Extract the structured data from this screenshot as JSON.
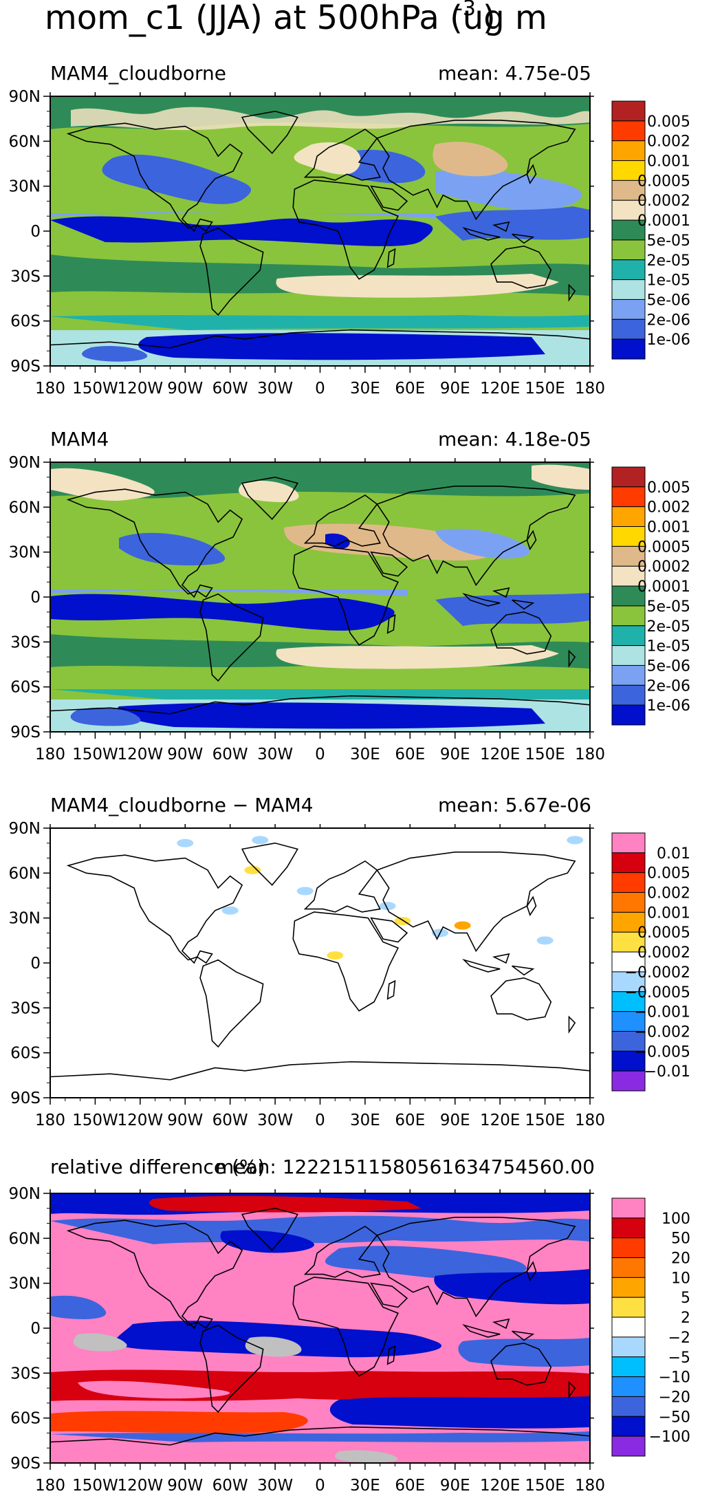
{
  "figure": {
    "title_main": "mom_c1 (JJA) at 500hPa (ug m",
    "title_exp": "-3",
    "title_end": ")"
  },
  "x_ticks": [
    "180",
    "150W",
    "120W",
    "90W",
    "60W",
    "30W",
    "0",
    "30E",
    "60E",
    "90E",
    "120E",
    "150E",
    "180"
  ],
  "y_ticks": [
    "90N",
    "60N",
    "30N",
    "0",
    "30S",
    "60S",
    "90S"
  ],
  "chart_data": [
    {
      "type": "heatmap",
      "title": "MAM4_cloudborne",
      "mean_label": "mean: 4.75e-05",
      "xlim": [
        -180,
        180
      ],
      "ylim": [
        -90,
        90
      ],
      "colorbar": {
        "colors": [
          "#b22222",
          "#ff3b00",
          "#ffa500",
          "#ffd800",
          "#e0b98a",
          "#f3e3c3",
          "#2e8b57",
          "#8ac43c",
          "#20b2aa",
          "#aee3e3",
          "#7ba2f2",
          "#3c64dd",
          "#0010cc"
        ],
        "labels": [
          "0.005",
          "0.002",
          "0.001",
          "0.0005",
          "0.0002",
          "0.0001",
          "5e-05",
          "2e-05",
          "1e-05",
          "5e-06",
          "2e-06",
          "1e-06"
        ]
      }
    },
    {
      "type": "heatmap",
      "title": "MAM4",
      "mean_label": "mean: 4.18e-05",
      "xlim": [
        -180,
        180
      ],
      "ylim": [
        -90,
        90
      ],
      "colorbar": {
        "colors": [
          "#b22222",
          "#ff3b00",
          "#ffa500",
          "#ffd800",
          "#e0b98a",
          "#f3e3c3",
          "#2e8b57",
          "#8ac43c",
          "#20b2aa",
          "#aee3e3",
          "#7ba2f2",
          "#3c64dd",
          "#0010cc"
        ],
        "labels": [
          "0.005",
          "0.002",
          "0.001",
          "0.0005",
          "0.0002",
          "0.0001",
          "5e-05",
          "2e-05",
          "1e-05",
          "5e-06",
          "2e-06",
          "1e-06"
        ]
      }
    },
    {
      "type": "heatmap",
      "title": "MAM4_cloudborne − MAM4",
      "mean_label": "mean: 5.67e-06",
      "xlim": [
        -180,
        180
      ],
      "ylim": [
        -90,
        90
      ],
      "colorbar": {
        "colors": [
          "#ff82c3",
          "#d7000f",
          "#ff3b00",
          "#ff7700",
          "#ffa500",
          "#ffe043",
          "#ffffff",
          "#a9d8ff",
          "#00bfff",
          "#1e90ff",
          "#3c64dd",
          "#0010cc",
          "#8a2be2"
        ],
        "labels": [
          "0.01",
          "0.005",
          "0.002",
          "0.001",
          "0.0005",
          "0.0002",
          "−0.0002",
          "−0.0005",
          "−0.001",
          "−0.002",
          "−0.005",
          "−0.01"
        ]
      }
    },
    {
      "type": "heatmap",
      "title": "relative difference (%)",
      "mean_label": "mean: 12221511580561634754560.00",
      "xlim": [
        -180,
        180
      ],
      "ylim": [
        -90,
        90
      ],
      "colorbar": {
        "colors": [
          "#ff82c3",
          "#d7000f",
          "#ff3b00",
          "#ff7700",
          "#ffa500",
          "#ffe043",
          "#ffffff",
          "#a9d8ff",
          "#00bfff",
          "#1e90ff",
          "#3c64dd",
          "#0010cc",
          "#8a2be2"
        ],
        "labels": [
          "100",
          "50",
          "20",
          "10",
          "5",
          "2",
          "−2",
          "−5",
          "−10",
          "−20",
          "−50",
          "−100"
        ]
      }
    }
  ]
}
